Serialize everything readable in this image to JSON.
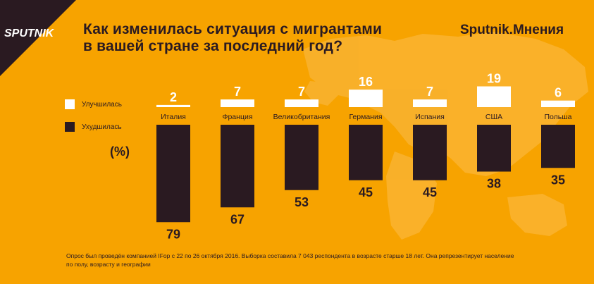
{
  "header": {
    "title_line1": "Как изменилась ситуация с мигрантами",
    "title_line2": "в вашей стране за последний год?",
    "brand": "Sputnik.Мнения",
    "logo_text": "SPUTNIK"
  },
  "legend": {
    "improved": "Улучшилась",
    "worsened": "Ухудшилась"
  },
  "unit_label": "(%)",
  "footnote": {
    "line1": "Опрос был проведён компанией IFop с 22 по 26 октября 2016. Выборка составила 7 043 респондента в возрасте старше 18 лет. Она репрезентирует население",
    "line2": "по полу, возрасту и географии"
  },
  "colors": {
    "background": "#f7a300",
    "improved": "#ffffff",
    "worsened": "#2a1a21",
    "map": "#f9b22e",
    "logo": "#2a1a21"
  },
  "chart_data": {
    "type": "bar",
    "title": "Как изменилась ситуация с мигрантами в вашей стране за последний год?",
    "categories": [
      "Италия",
      "Франция",
      "Великобритания",
      "Германия",
      "Испания",
      "США",
      "Польша"
    ],
    "series": [
      {
        "name": "Улучшилась",
        "values": [
          2,
          7,
          7,
          16,
          7,
          19,
          6
        ]
      },
      {
        "name": "Ухудшилась",
        "values": [
          79,
          67,
          53,
          45,
          45,
          38,
          35
        ]
      }
    ],
    "legend_position": "left",
    "grid": false
  }
}
